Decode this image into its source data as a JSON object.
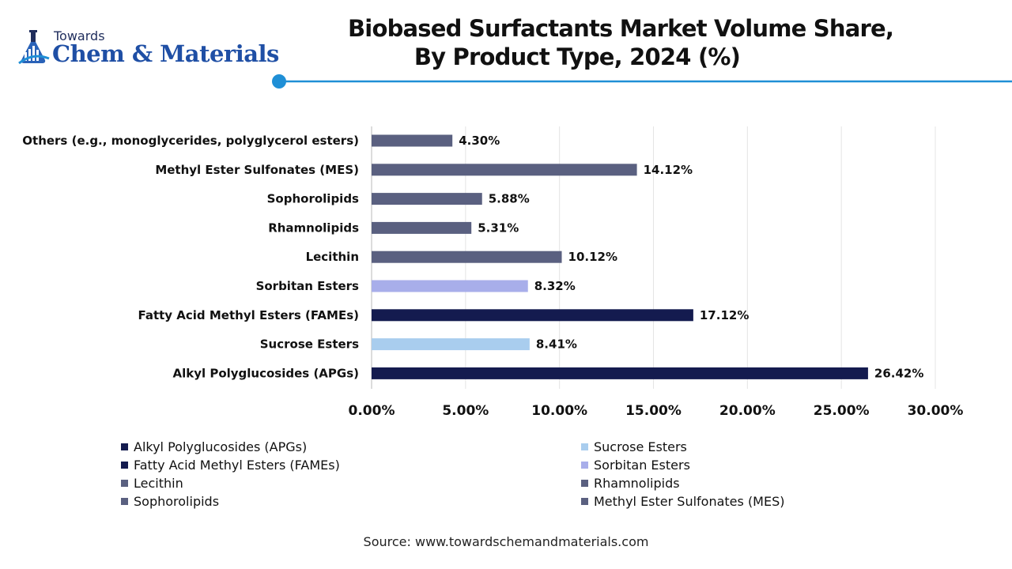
{
  "logo": {
    "line1": "Towards",
    "line2": "Chem & Materials"
  },
  "title": {
    "line1": "Biobased Surfactants Market Volume Share,",
    "line2": "By Product Type, 2024 (%)"
  },
  "colors": {
    "dark_navy": "#141b4f",
    "slate": "#5a6080",
    "light_blue": "#a9cdee",
    "lavender": "#a8aeea",
    "accent_blue": "#1f8fd6"
  },
  "chart_data": {
    "type": "bar",
    "orientation": "horizontal",
    "categories": [
      "Others (e.g., monoglycerides, polyglycerol esters)",
      "Methyl Ester Sulfonates (MES)",
      "Sophorolipids",
      "Rhamnolipids",
      "Lecithin",
      "Sorbitan Esters",
      "Fatty Acid Methyl Esters (FAMEs)",
      "Sucrose Esters",
      "Alkyl Polyglucosides (APGs)"
    ],
    "values": [
      4.3,
      14.12,
      5.88,
      5.31,
      10.12,
      8.32,
      17.12,
      8.41,
      26.42
    ],
    "value_labels": [
      "4.30%",
      "14.12%",
      "5.88%",
      "5.31%",
      "10.12%",
      "8.32%",
      "17.12%",
      "8.41%",
      "26.42%"
    ],
    "bar_colors": [
      "#5a6080",
      "#5a6080",
      "#5a6080",
      "#5a6080",
      "#5a6080",
      "#a8aeea",
      "#141b4f",
      "#a9cdee",
      "#141b4f"
    ],
    "xlim": [
      0,
      30
    ],
    "xticks": [
      0,
      5,
      10,
      15,
      20,
      25,
      30
    ],
    "xtick_labels": [
      "0.00%",
      "5.00%",
      "10.00%",
      "15.00%",
      "20.00%",
      "25.00%",
      "30.00%"
    ],
    "grid": true,
    "xlabel": "",
    "ylabel": "",
    "legend_placement": "bottom",
    "legend": [
      {
        "label": "Alkyl Polyglucosides (APGs)",
        "color": "#141b4f"
      },
      {
        "label": "Sucrose Esters",
        "color": "#a9cdee"
      },
      {
        "label": "Fatty Acid Methyl Esters (FAMEs)",
        "color": "#141b4f"
      },
      {
        "label": "Sorbitan Esters",
        "color": "#a8aeea"
      },
      {
        "label": "Lecithin",
        "color": "#5a6080"
      },
      {
        "label": "Rhamnolipids",
        "color": "#5a6080"
      },
      {
        "label": "Sophorolipids",
        "color": "#5a6080"
      },
      {
        "label": "Methyl Ester Sulfonates (MES)",
        "color": "#5a6080"
      }
    ]
  },
  "source": "Source: www.towardschemandmaterials.com"
}
